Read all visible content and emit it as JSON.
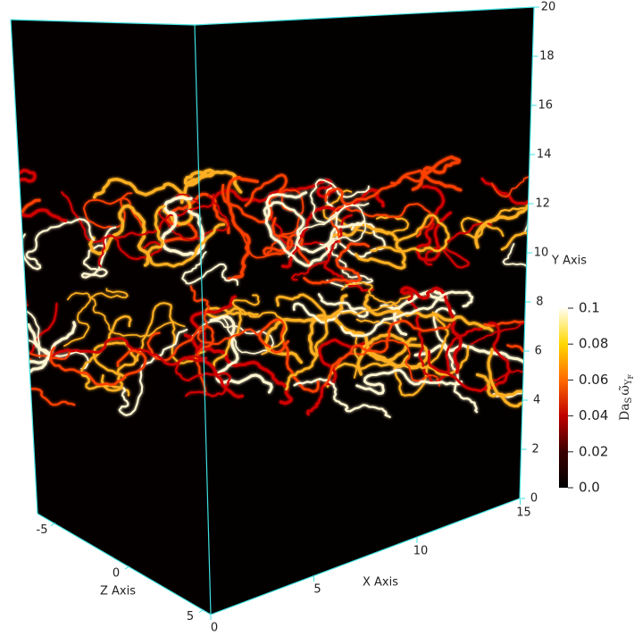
{
  "axes": {
    "x": {
      "label": "X Axis",
      "ticks": [
        "0",
        "5",
        "10",
        "15"
      ]
    },
    "y": {
      "label": "Y Axis",
      "ticks": [
        "0",
        "2",
        "4",
        "6",
        "8",
        "10",
        "12",
        "14",
        "16",
        "18",
        "20"
      ]
    },
    "z": {
      "label": "Z Axis",
      "ticks": [
        "-5",
        "0",
        "5"
      ]
    }
  },
  "colorbar": {
    "label": {
      "main": "Da",
      "main_sub": "S",
      "symbol": "ω̃",
      "symbol_sub": "Y",
      "symbol_subsub": "F"
    },
    "ticks": [
      "0.0",
      "0.02",
      "0.04",
      "0.06",
      "0.08",
      "0.1"
    ]
  }
}
